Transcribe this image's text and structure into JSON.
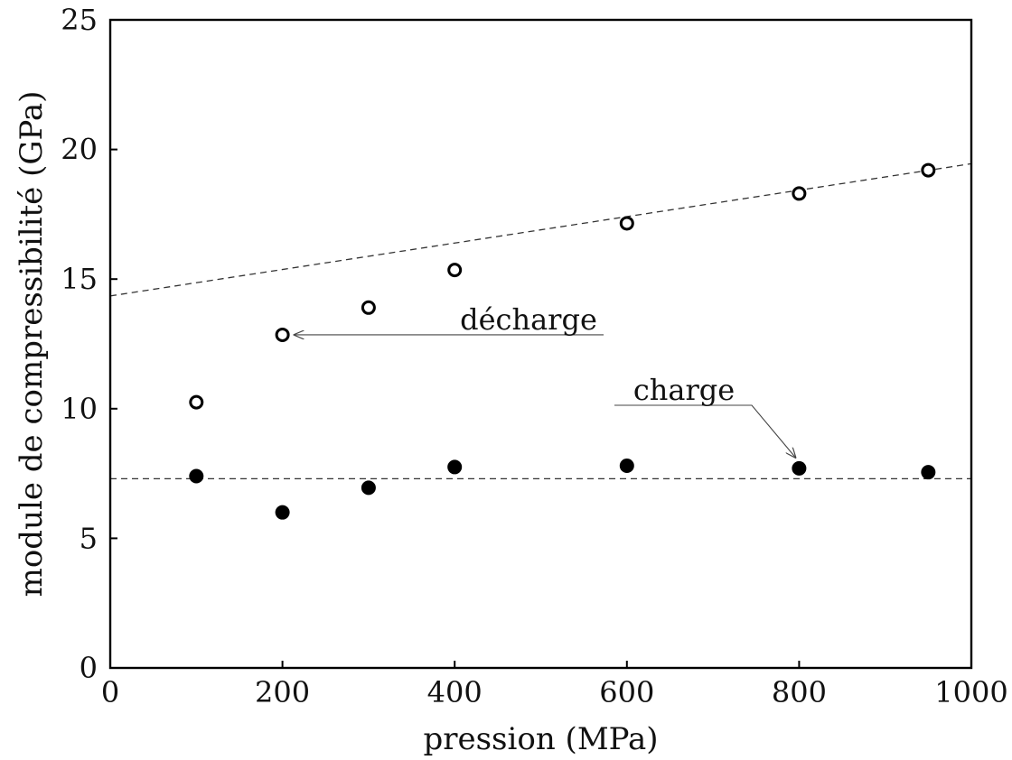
{
  "chart_data": {
    "type": "scatter",
    "xlabel": "pression (MPa)",
    "ylabel": "module de compressibilité (GPa)",
    "xlim": [
      0,
      1000
    ],
    "ylim": [
      0,
      25
    ],
    "x_ticks": [
      0,
      200,
      400,
      600,
      800,
      1000
    ],
    "y_ticks": [
      0,
      5,
      10,
      15,
      20,
      25
    ],
    "grid": false,
    "series": [
      {
        "name": "décharge",
        "marker": "open-circle",
        "x": [
          100,
          200,
          300,
          400,
          600,
          800,
          950
        ],
        "y": [
          10.25,
          12.85,
          13.9,
          15.35,
          17.15,
          18.3,
          19.2
        ]
      },
      {
        "name": "charge",
        "marker": "filled-circle",
        "x": [
          100,
          200,
          300,
          400,
          600,
          800,
          950
        ],
        "y": [
          7.4,
          6.0,
          6.95,
          7.75,
          7.8,
          7.7,
          7.55
        ]
      }
    ],
    "fit_lines": [
      {
        "series": "décharge",
        "x": [
          0,
          1000
        ],
        "y": [
          14.35,
          19.45
        ]
      },
      {
        "series": "charge",
        "x": [
          0,
          1000
        ],
        "y": [
          7.3,
          7.3
        ]
      }
    ],
    "annotations": [
      {
        "text": "décharge",
        "points_to": {
          "x": 200,
          "y": 12.85
        }
      },
      {
        "text": "charge",
        "points_to": {
          "x": 800,
          "y": 7.7
        }
      }
    ]
  }
}
